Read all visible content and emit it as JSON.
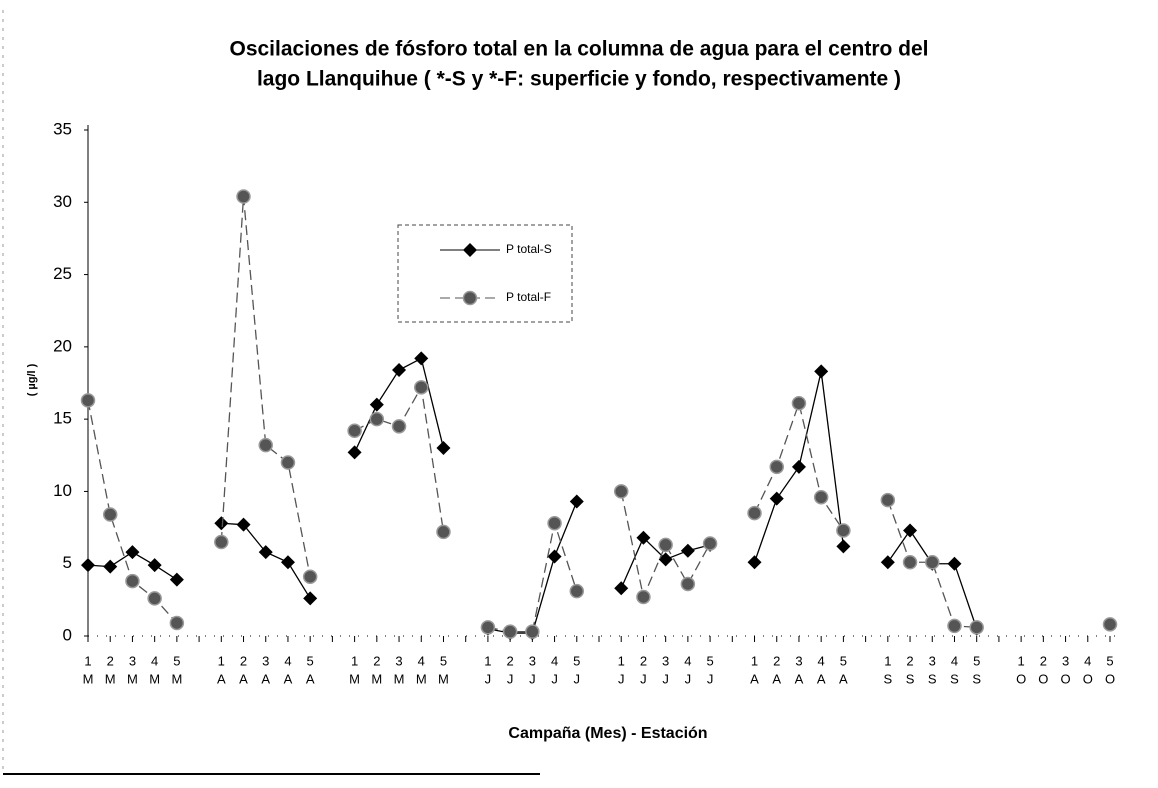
{
  "chart_data": {
    "type": "line",
    "title": [
      "Oscilaciones de fósforo total en la columna de agua para el centro del",
      "lago Llanquihue ( *-S y *-F: superficie y fondo, respectivamente )"
    ],
    "xlabel": "Campaña (Mes) - Estación",
    "ylabel": "( µg/l )",
    "x_stations": [
      "1",
      "2",
      "3",
      "4",
      "5",
      null,
      "1",
      "2",
      "3",
      "4",
      "5",
      null,
      "1",
      "2",
      "3",
      "4",
      "5",
      null,
      "1",
      "2",
      "3",
      "4",
      "5",
      null,
      "1",
      "2",
      "3",
      "4",
      "5",
      null,
      "1",
      "2",
      "3",
      "4",
      "5",
      null,
      "1",
      "2",
      "3",
      "4",
      "5",
      null,
      "1",
      "2",
      "3",
      "4",
      "5"
    ],
    "x_months": [
      "M",
      "M",
      "M",
      "M",
      "M",
      null,
      "A",
      "A",
      "A",
      "A",
      "A",
      null,
      "M",
      "M",
      "M",
      "M",
      "M",
      null,
      "J",
      "J",
      "J",
      "J",
      "J",
      null,
      "J",
      "J",
      "J",
      "J",
      "J",
      null,
      "A",
      "A",
      "A",
      "A",
      "A",
      null,
      "S",
      "S",
      "S",
      "S",
      "S",
      null,
      "O",
      "O",
      "O",
      "O",
      "O"
    ],
    "series": [
      {
        "name": "P total-S",
        "color": "#000000",
        "marker": "diamond",
        "dash": false,
        "values": [
          4.9,
          4.8,
          5.8,
          4.9,
          3.9,
          null,
          7.8,
          7.7,
          5.8,
          5.1,
          2.6,
          null,
          12.7,
          16.0,
          18.4,
          19.2,
          13.0,
          null,
          0.5,
          0.2,
          0.2,
          5.5,
          9.3,
          null,
          3.3,
          6.8,
          5.3,
          5.9,
          6.3,
          null,
          5.1,
          9.5,
          11.7,
          18.3,
          6.2,
          null,
          5.1,
          7.3,
          5.0,
          5.0,
          0.5,
          null,
          null,
          null,
          null,
          null,
          null
        ]
      },
      {
        "name": "P total-F",
        "color": "#555555",
        "marker": "circle",
        "dash": true,
        "values": [
          16.3,
          8.4,
          3.8,
          2.6,
          0.9,
          null,
          6.5,
          30.4,
          13.2,
          12.0,
          4.1,
          null,
          14.2,
          15.0,
          14.5,
          17.2,
          7.2,
          null,
          0.6,
          0.3,
          0.3,
          7.8,
          3.1,
          null,
          10.0,
          2.7,
          6.3,
          3.6,
          6.4,
          null,
          8.5,
          11.7,
          16.1,
          9.6,
          7.3,
          null,
          9.4,
          5.1,
          5.1,
          0.7,
          0.6,
          null,
          null,
          null,
          null,
          null,
          0.8
        ]
      }
    ],
    "ylim": [
      0,
      35
    ],
    "yticks": [
      0,
      5,
      10,
      15,
      20,
      25,
      30,
      35
    ]
  }
}
